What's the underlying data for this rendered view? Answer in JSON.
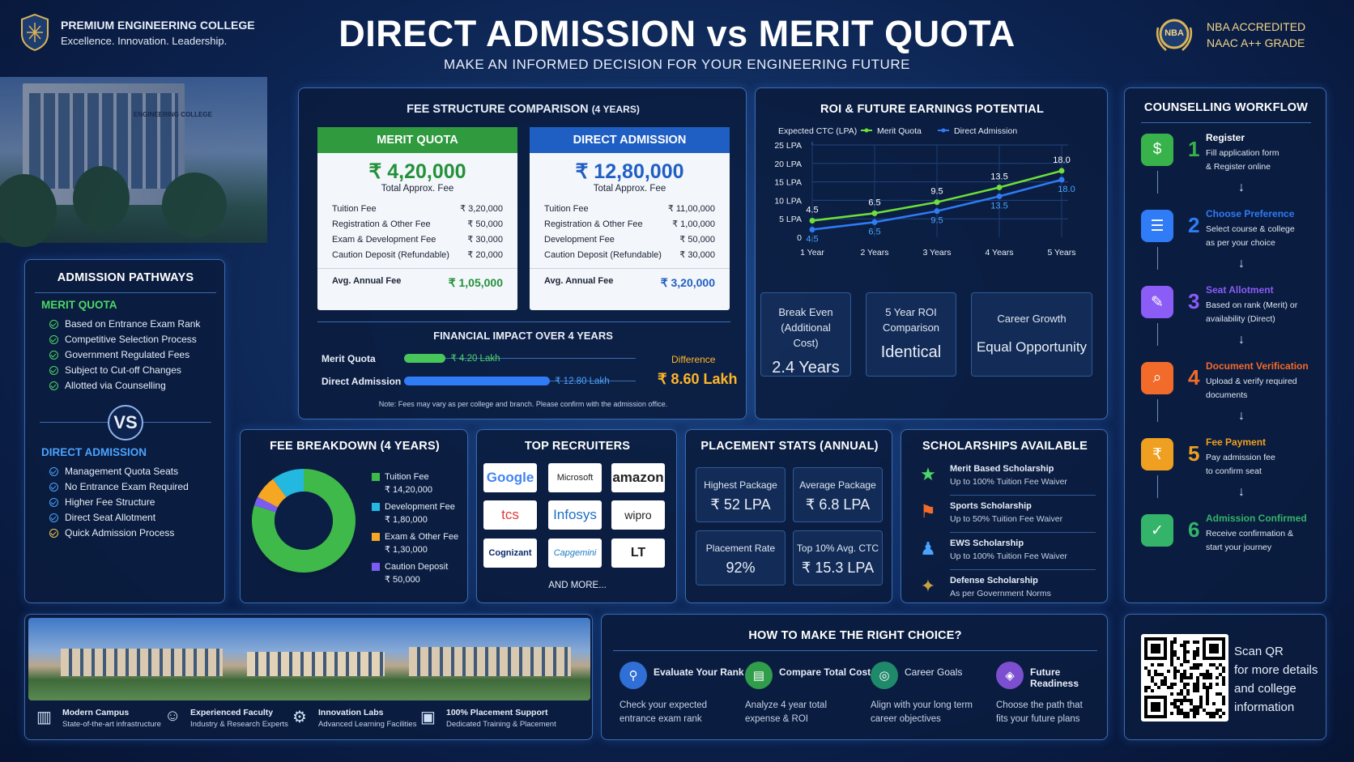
{
  "header": {
    "college_name": "PREMIUM ENGINEERING COLLEGE",
    "tagline": "Excellence. Innovation. Leadership.",
    "title": "DIRECT ADMISSION vs MERIT QUOTA",
    "subtitle": "MAKE AN INFORMED DECISION FOR YOUR ENGINEERING FUTURE",
    "badge_text": "NBA",
    "accreditation_1": "NBA ACCREDITED",
    "accreditation_2": "NAAC A++ GRADE",
    "building_sign": "ENGINEERING COLLEGE"
  },
  "fee_structure": {
    "title": "FEE STRUCTURE COMPARISON",
    "title_suffix": "(4 YEARS)",
    "merit": {
      "label": "MERIT QUOTA",
      "amount": "₹ 4,20,000",
      "amount_caption": "Total Approx. Fee",
      "rows": [
        [
          "Tuition Fee",
          "₹ 3,20,000"
        ],
        [
          "Registration & Other Fee",
          "₹ 50,000"
        ],
        [
          "Exam & Development Fee",
          "₹ 30,000"
        ],
        [
          "Caution Deposit (Refundable)",
          "₹ 20,000"
        ]
      ],
      "avg_label": "Avg. Annual Fee",
      "avg_value": "₹ 1,05,000"
    },
    "direct": {
      "label": "DIRECT ADMISSION",
      "amount": "₹ 12,80,000",
      "amount_caption": "Total Approx. Fee",
      "rows": [
        [
          "Tuition Fee",
          "₹ 11,00,000"
        ],
        [
          "Registration & Other Fee",
          "₹ 1,00,000"
        ],
        [
          "Development Fee",
          "₹ 50,000"
        ],
        [
          "Caution Deposit (Refundable)",
          "₹ 30,000"
        ]
      ],
      "avg_label": "Avg. Annual Fee",
      "avg_value": "₹ 3,20,000"
    },
    "impact_title": "FINANCIAL IMPACT OVER 4 YEARS",
    "impact_merit_label": "Merit Quota",
    "impact_merit_value": "₹ 4.20 Lakh",
    "impact_merit_frac": 0.18,
    "impact_direct_label": "Direct Admission",
    "impact_direct_value": "₹ 12.80 Lakh",
    "impact_direct_frac": 0.63,
    "difference_label": "Difference",
    "difference_value": "₹ 8.60 Lakh",
    "note": "Note: Fees may vary as per college and branch. Please confirm with the admission office."
  },
  "pathways": {
    "title": "ADMISSION PATHWAYS",
    "merit_title": "MERIT QUOTA",
    "merit_items": [
      "Based on Entrance Exam Rank",
      "Competitive Selection Process",
      "Government Regulated Fees",
      "Subject to Cut-off Changes",
      "Allotted via Counselling"
    ],
    "vs": "VS",
    "direct_title": "DIRECT ADMISSION",
    "direct_items": [
      "Management Quota Seats",
      "No Entrance Exam Required",
      "Higher Fee Structure",
      "Direct Seat Allotment",
      "Quick Admission Process"
    ]
  },
  "roi": {
    "title": "ROI & FUTURE EARNINGS POTENTIAL",
    "boxes": [
      {
        "label": "Break Even (Additional Cost)",
        "value": "2.4 Years"
      },
      {
        "label": "5 Year ROI Comparison",
        "value": "Identical"
      },
      {
        "label": "Career Growth",
        "value": "Equal Opportunity"
      }
    ]
  },
  "chart_data": {
    "type": "line",
    "ylabel": "Expected CTC (LPA)",
    "categories": [
      "1 Year",
      "2 Years",
      "3 Years",
      "4 Years",
      "5 Years"
    ],
    "yticks": [
      "25 LPA",
      "20 LPA",
      "15 LPA",
      "10 LPA",
      "5 LPA",
      "0"
    ],
    "ylim": [
      0,
      25
    ],
    "grid": true,
    "legend": "top",
    "series": [
      {
        "name": "Merit Quota",
        "color": "#6ee037",
        "values": [
          4.5,
          6.5,
          9.5,
          13.5,
          18.0
        ],
        "labels": [
          "4.5",
          "6.5",
          "9.5",
          "13.5",
          "18.0"
        ]
      },
      {
        "name": "Direct Admission",
        "color": "#2f7cf6",
        "values": [
          4.5,
          6.5,
          9.5,
          13.5,
          18.0
        ],
        "labels": [
          "4.5",
          "6.5",
          "9.5",
          "13.5",
          "18.0"
        ]
      }
    ]
  },
  "workflow": {
    "title": "COUNSELLING WORKFLOW",
    "steps": [
      {
        "num": "1",
        "title": "Register",
        "desc1": "Fill application form",
        "desc2": "& Register online",
        "color": "#38b24a",
        "icon": "$"
      },
      {
        "num": "2",
        "title": "Choose Preference",
        "desc1": "Select course & college",
        "desc2": "as per your choice",
        "color": "#2f7cf6",
        "icon": "☰"
      },
      {
        "num": "3",
        "title": "Seat Allotment",
        "desc1": "Based on rank (Merit) or",
        "desc2": "availability (Direct)",
        "color": "#8b5cf6",
        "icon": "✎"
      },
      {
        "num": "4",
        "title": "Document Verification",
        "desc1": "Upload & verify required",
        "desc2": "documents",
        "color": "#f26b2a",
        "icon": "⌕"
      },
      {
        "num": "5",
        "title": "Fee Payment",
        "desc1": "Pay admission fee",
        "desc2": "to confirm seat",
        "color": "#f0a020",
        "icon": "₹"
      },
      {
        "num": "6",
        "title": "Admission Confirmed",
        "desc1": "Receive confirmation &",
        "desc2": "start your journey",
        "color": "#34b46a",
        "icon": "✓"
      }
    ]
  },
  "breakdown": {
    "title": "FEE BREAKDOWN (4 YEARS)",
    "items": [
      {
        "name": "Tuition Fee",
        "value": "₹ 14,20,000",
        "num": 1420000,
        "color": "#3fb94a"
      },
      {
        "name": "Development Fee",
        "value": "₹ 1,80,000",
        "num": 180000,
        "color": "#22b8e0"
      },
      {
        "name": "Exam & Other Fee",
        "value": "₹ 1,30,000",
        "num": 130000,
        "color": "#f5a623"
      },
      {
        "name": "Caution Deposit",
        "value": "₹ 50,000",
        "num": 50000,
        "color": "#7b5cf0"
      }
    ]
  },
  "recruiters": {
    "title": "TOP RECRUITERS",
    "logos": [
      "Google",
      "Microsoft",
      "amazon",
      "tcs",
      "Infosys",
      "wipro",
      "Cognizant",
      "Capgemini",
      "LT"
    ],
    "more": "AND MORE..."
  },
  "placement": {
    "title": "PLACEMENT STATS (ANNUAL)",
    "stats": [
      {
        "label": "Highest Package",
        "value": "₹ 52 LPA"
      },
      {
        "label": "Average Package",
        "value": "₹ 6.8 LPA"
      },
      {
        "label": "Placement Rate",
        "value": "92%"
      },
      {
        "label": "Top 10% Avg. CTC",
        "value": "₹ 15.3 LPA"
      }
    ]
  },
  "scholarships": {
    "title": "SCHOLARSHIPS AVAILABLE",
    "items": [
      {
        "name": "Merit Based Scholarship",
        "desc": "Up to 100% Tuition Fee Waiver",
        "color": "#4cd964",
        "icon": "★"
      },
      {
        "name": "Sports Scholarship",
        "desc": "Up to 50% Tuition Fee Waiver",
        "color": "#f26b2a",
        "icon": "⚑"
      },
      {
        "name": "EWS Scholarship",
        "desc": "Up to 100% Tuition Fee Waiver",
        "color": "#4aa3ff",
        "icon": "♟"
      },
      {
        "name": "Defense Scholarship",
        "desc": "As per Government Norms",
        "color": "#c8a040",
        "icon": "✦"
      }
    ]
  },
  "campus": {
    "features": [
      {
        "name": "Modern Campus",
        "desc": "State-of-the-art infrastructure"
      },
      {
        "name": "Experienced Faculty",
        "desc": "Industry & Research Experts"
      },
      {
        "name": "Innovation Labs",
        "desc": "Advanced Learning Facilities"
      },
      {
        "name": "100% Placement Support",
        "desc": "Dedicated Training & Placement"
      }
    ]
  },
  "choice": {
    "title": "HOW TO MAKE THE RIGHT CHOICE?",
    "items": [
      {
        "title": "Evaluate Your Rank",
        "desc1": "Check your expected",
        "desc2": "entrance exam rank",
        "color": "#2f6fd6"
      },
      {
        "title": "Compare Total Cost",
        "desc1": "Analyze 4 year total",
        "desc2": "expense & ROI",
        "color": "#2f9d4a"
      },
      {
        "title": "Career Goals",
        "desc1": "Align with your long term",
        "desc2": "career objectives",
        "color": "#1f8a6a"
      },
      {
        "title": "Future Readiness",
        "desc1": "Choose the path that",
        "desc2": "fits your future plans",
        "color": "#7b4fd0"
      }
    ]
  },
  "qr": {
    "line1": "Scan QR",
    "line2": "for more details",
    "line3": "and college",
    "line4": "information"
  }
}
